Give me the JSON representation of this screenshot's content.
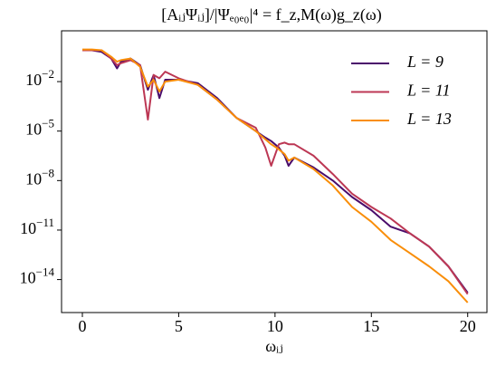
{
  "chart_data": {
    "type": "line",
    "title": "[AᵢⱼΨᵢⱼ]/|Ψₑ₀ₑ₀|⁴ = f_z,M(ω)g_z(ω)",
    "x_label": "ωᵢⱼ",
    "log_y": true,
    "legend": "upper right",
    "x": [
      0,
      0.5,
      1,
      1.5,
      1.8,
      2,
      2.5,
      3,
      3.4,
      3.7,
      4,
      4.3,
      5,
      6,
      7,
      8,
      9,
      9.5,
      9.8,
      10.2,
      10.5,
      10.7,
      11,
      12,
      13,
      14,
      15,
      16,
      17,
      18,
      19,
      20
    ],
    "series": [
      {
        "name": "L = 9",
        "color": "#4a0c6b",
        "values": [
          0.79,
          0.79,
          0.63,
          0.25,
          0.063,
          0.16,
          0.25,
          0.1,
          0.0032,
          0.025,
          0.001,
          0.013,
          0.013,
          0.0079,
          0.001,
          6.3e-05,
          1e-05,
          4e-06,
          2.5e-06,
          1e-06,
          3.2e-07,
          7.9e-08,
          2.5e-07,
          6.3e-08,
          1e-08,
          1e-09,
          1.6e-10,
          1.6e-11,
          6.3e-12,
          1e-12,
          6.3e-14,
          1.6e-15
        ]
      },
      {
        "name": "L = 11",
        "color": "#bc3754",
        "values": [
          0.79,
          0.79,
          0.79,
          0.25,
          0.1,
          0.13,
          0.2,
          0.1,
          5e-05,
          0.025,
          0.016,
          0.04,
          0.016,
          0.0063,
          0.00079,
          6.3e-05,
          1.6e-05,
          1e-06,
          7.9e-08,
          1.6e-06,
          2e-06,
          1.6e-06,
          1.6e-06,
          3.2e-07,
          2.5e-08,
          1.6e-09,
          2.5e-10,
          5e-11,
          6.3e-12,
          1e-12,
          6.3e-14,
          1.3e-15
        ]
      },
      {
        "name": "L = 13",
        "color": "#f98e09",
        "values": [
          0.89,
          0.89,
          0.79,
          0.32,
          0.16,
          0.2,
          0.25,
          0.079,
          0.005,
          0.013,
          0.0025,
          0.01,
          0.013,
          0.0063,
          0.00079,
          6.3e-05,
          1e-05,
          3.2e-06,
          1.6e-06,
          7.9e-07,
          4e-07,
          1.6e-07,
          2.5e-07,
          5e-08,
          5e-09,
          2.5e-10,
          3.2e-11,
          2.5e-12,
          4e-13,
          6.3e-14,
          7.9e-15,
          4e-16
        ]
      }
    ],
    "xlim": [
      -1.08,
      21
    ],
    "xticks": [
      0,
      5,
      10,
      15,
      20
    ],
    "ylim": [
      1e-16,
      12
    ],
    "yticks": [
      {
        "value": 0.01,
        "label": "10",
        "exponent": "−2"
      },
      {
        "value": 1e-05,
        "label": "10",
        "exponent": "−5"
      },
      {
        "value": 1e-08,
        "label": "10",
        "exponent": "−8"
      },
      {
        "value": 1e-11,
        "label": "10",
        "exponent": "−11"
      },
      {
        "value": 1e-14,
        "label": "10",
        "exponent": "−14"
      }
    ]
  }
}
